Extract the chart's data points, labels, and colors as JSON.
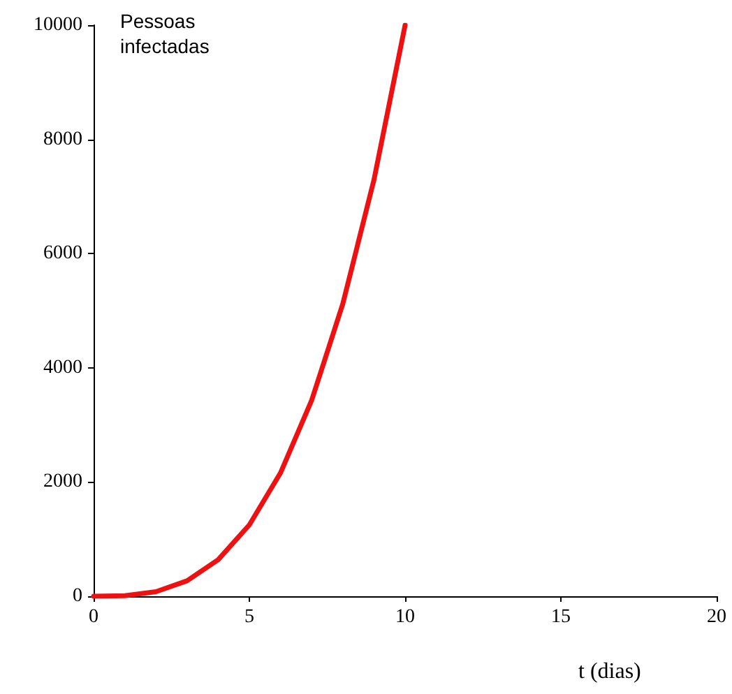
{
  "chart_data": {
    "type": "line",
    "xlabel": "t (dias)",
    "ylabel": "Pessoas infectadas",
    "x": [
      0,
      1,
      2,
      3,
      4,
      5,
      6,
      7,
      8,
      9,
      10
    ],
    "series": [
      {
        "color": "#ee1111",
        "values": [
          0,
          10,
          80,
          270,
          640,
          1250,
          2160,
          3430,
          5120,
          7290,
          10000
        ]
      }
    ],
    "xlim": [
      0,
      20
    ],
    "xticks": [
      0,
      5,
      10,
      15,
      20
    ],
    "ylim": [
      0,
      10000
    ],
    "yticks": [
      0,
      2000,
      4000,
      6000,
      8000,
      10000
    ],
    "marker": "none",
    "line_style": "solid"
  }
}
